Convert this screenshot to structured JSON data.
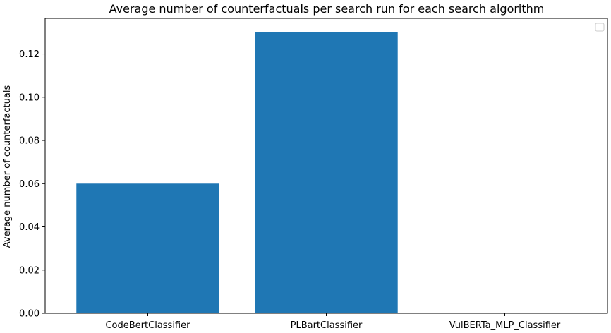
{
  "chart_data": {
    "type": "bar",
    "title": "Average number of counterfactuals per search run for each search algorithm",
    "xlabel": "",
    "ylabel": "Average number of counterfactuals",
    "categories": [
      "CodeBertClassifier",
      "PLBartClassifier",
      "VulBERTa_MLP_Classifier"
    ],
    "values": [
      0.06,
      0.13,
      0.0
    ],
    "ylim": [
      0,
      0.1365
    ],
    "yticks": [
      "0.00",
      "0.02",
      "0.04",
      "0.06",
      "0.08",
      "0.10",
      "0.12"
    ],
    "bar_color": "#1f77b4",
    "grid": false,
    "legend": "top-right (empty)"
  }
}
